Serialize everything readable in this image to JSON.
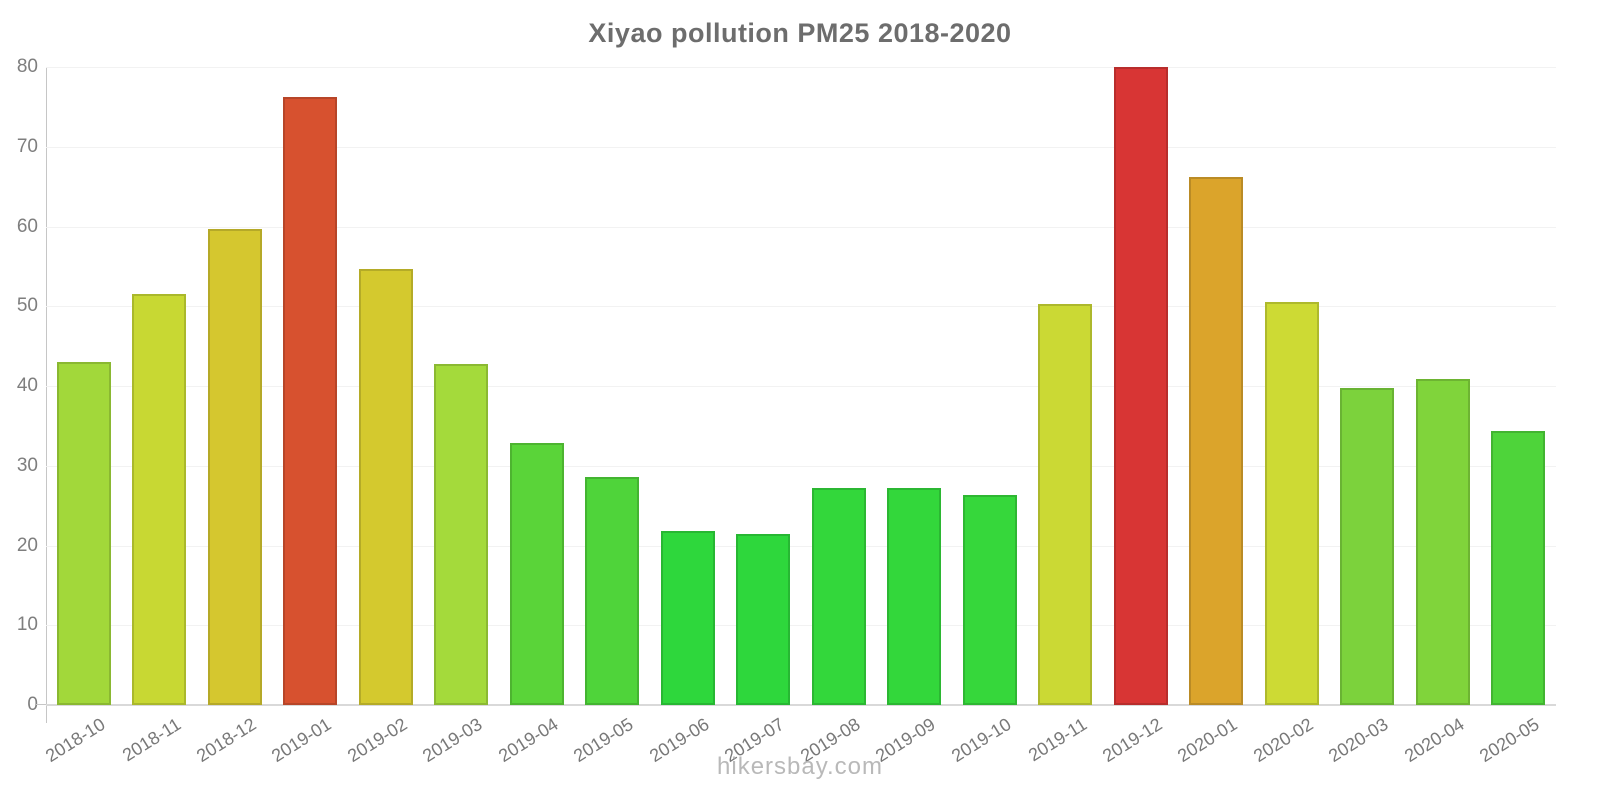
{
  "title": "Xiyao pollution PM25 2018-2020",
  "watermark": "hikersbay.com",
  "chart_data": {
    "type": "bar",
    "title": "Xiyao pollution PM25 2018-2020",
    "xlabel": "",
    "ylabel": "",
    "ylim": [
      0,
      80
    ],
    "yticks": [
      0,
      10,
      20,
      30,
      40,
      50,
      60,
      70,
      80
    ],
    "grid": "horizontal",
    "legend": "none",
    "categories": [
      "2018-10",
      "2018-11",
      "2018-12",
      "2019-01",
      "2019-02",
      "2019-03",
      "2019-04",
      "2019-05",
      "2019-06",
      "2019-07",
      "2019-08",
      "2019-09",
      "2019-10",
      "2019-11",
      "2019-12",
      "2020-01",
      "2020-02",
      "2020-03",
      "2020-04",
      "2020-05"
    ],
    "values": [
      43.0,
      51.5,
      59.7,
      76.3,
      54.7,
      42.7,
      32.8,
      28.6,
      21.8,
      21.4,
      27.2,
      27.2,
      26.3,
      50.3,
      80.0,
      66.2,
      50.5,
      39.8,
      40.9,
      34.3
    ],
    "bar_colors": [
      "#a2d83a",
      "#c8d833",
      "#d5c72f",
      "#d7512f",
      "#d4c92e",
      "#a4da3b",
      "#5ad439",
      "#4fd43a",
      "#2ed73c",
      "#2ed73c",
      "#33d73b",
      "#33d73b",
      "#36d73b",
      "#cbd934",
      "#d83534",
      "#dba42b",
      "#cdda34",
      "#7cd23c",
      "#80d43b",
      "#4ed43a"
    ],
    "colors": {
      "title": "#6d6d6d",
      "axis_line": "#c6c6c6",
      "gridline": "#f2f2f2",
      "baseline": "#d9d9d9",
      "y_tick_label": "#7e7e7e",
      "x_tick_label": "#787878",
      "watermark": "#b9b9b9",
      "background": "#ffffff"
    }
  }
}
